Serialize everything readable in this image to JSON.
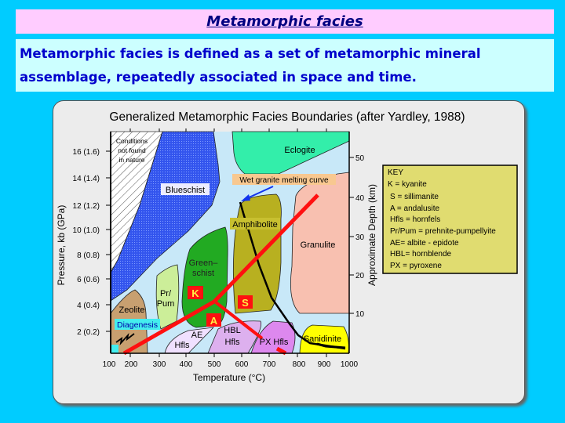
{
  "slide": {
    "title": "Metamorphic facies",
    "description": "Metamorphic facies is defined as a set of metamorphic mineral assemblage, repeatedly associated in space and time."
  },
  "diagram": {
    "title": "Generalized Metamorphic Facies Boundaries (after Yardley, 1988)",
    "x_axis": {
      "label": "Temperature (°C)",
      "ticks": [
        "100",
        "200",
        "300",
        "400",
        "500",
        "600",
        "700",
        "800",
        "900",
        "1000"
      ]
    },
    "y_axis_left": {
      "label": "Pressure, kb (GPa)",
      "ticks": [
        "16 (1.6)",
        "14 (1.4)",
        "12 (1.2)",
        "10 (1.0)",
        "8 (0.8)",
        "6 (0.6)",
        "4 (0.4)",
        "2 (0.2)"
      ]
    },
    "y_axis_right": {
      "label": "Approximate Depth (km)",
      "ticks": [
        "50",
        "40",
        "30",
        "20",
        "10"
      ]
    },
    "regions": {
      "hatched": [
        "Conditions",
        "not found",
        "in nature"
      ],
      "blueschist": "Blueschist",
      "eclogite": "Eclogite",
      "amphibolite": "Amphibolite",
      "granulite": "Granulite",
      "greenschist": [
        "Green–",
        "schist"
      ],
      "prpum": [
        "Pr/",
        "Pum"
      ],
      "zeolite": "Zeolite",
      "diagenesis": "Diagenesis",
      "ae": "AE",
      "hfls": "Hfls",
      "hbl": [
        "HBL",
        "Hfls"
      ],
      "px": "PX Hfls",
      "sanidinite": "Sanidinite"
    },
    "annotations": {
      "melting_curve": "Wet granite melting curve",
      "kyanite": "K",
      "sillimanite": "S",
      "andalusite": "A"
    },
    "key": {
      "title": "KEY",
      "items": [
        "K = kyanite",
        "S = sillimanite",
        "A = andalusite",
        "Hfls = hornfels",
        "Pr/Pum = prehnite-pumpellyite",
        "AE= albite -  epidote",
        "HBL= hornblende",
        "PX = pyroxene"
      ]
    },
    "colors": {
      "field": "#c8e8f8",
      "blueschist": "#3355ee",
      "eclogite": "#33eeaa",
      "granulite": "#f8c0b0",
      "amphibolite": "#b8b020",
      "greenschist": "#22aa22",
      "prpum": "#ccee99",
      "zeolite": "#c8a070",
      "aluminosilicate_lines": "#ff1010",
      "key_bg": "#e0dc70"
    }
  }
}
